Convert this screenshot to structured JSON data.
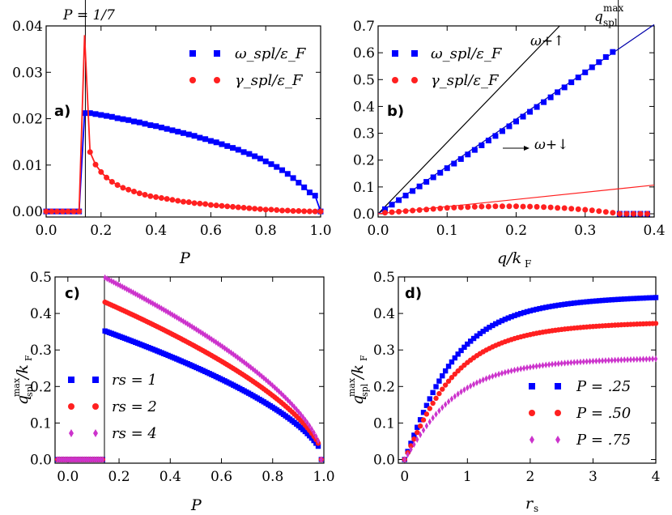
{
  "figure": {
    "title": ""
  },
  "chart_data": [
    {
      "panel": "a)",
      "type": "scatter",
      "xlabel": "P",
      "ylabel": "",
      "xlim": [
        0.0,
        1.0
      ],
      "ylim": [
        0.0,
        0.04
      ],
      "xticks": [
        "0.0",
        "0.2",
        "0.4",
        "0.6",
        "0.8",
        "1.0"
      ],
      "yticks": [
        "0.00",
        "0.01",
        "0.02",
        "0.03",
        "0.04"
      ],
      "vline": {
        "x": 0.142857,
        "label": "P = 1/7"
      },
      "legend_position": "top-right",
      "series": [
        {
          "name": "ω_spl/ε_F",
          "color": "#0000ff",
          "marker": "square",
          "x": [
            0.0,
            0.02,
            0.04,
            0.06,
            0.08,
            0.1,
            0.12,
            0.14,
            0.16,
            0.18,
            0.2,
            0.22,
            0.24,
            0.26,
            0.28,
            0.3,
            0.32,
            0.34,
            0.36,
            0.38,
            0.4,
            0.42,
            0.44,
            0.46,
            0.48,
            0.5,
            0.52,
            0.54,
            0.56,
            0.58,
            0.6,
            0.62,
            0.64,
            0.66,
            0.68,
            0.7,
            0.72,
            0.74,
            0.76,
            0.78,
            0.8,
            0.82,
            0.84,
            0.86,
            0.88,
            0.9,
            0.92,
            0.94,
            0.96,
            0.98,
            1.0
          ],
          "values": [
            0,
            0,
            0,
            0,
            0,
            0,
            0,
            0.0212,
            0.0212,
            0.021,
            0.0208,
            0.0206,
            0.0204,
            0.0201,
            0.0199,
            0.0197,
            0.0194,
            0.0192,
            0.0189,
            0.0186,
            0.0184,
            0.0181,
            0.0178,
            0.0175,
            0.0172,
            0.0169,
            0.0166,
            0.0163,
            0.0159,
            0.0156,
            0.0152,
            0.0149,
            0.0145,
            0.0141,
            0.0137,
            0.0133,
            0.0128,
            0.0124,
            0.0119,
            0.0114,
            0.0108,
            0.0102,
            0.0096,
            0.0089,
            0.0081,
            0.0072,
            0.0062,
            0.0052,
            0.0041,
            0.0034,
            0
          ]
        },
        {
          "name": "γ_spl/ε_F",
          "color": "#ff2020",
          "marker": "circle",
          "x": [
            0.0,
            0.02,
            0.04,
            0.06,
            0.08,
            0.1,
            0.12,
            0.14,
            0.16,
            0.18,
            0.2,
            0.22,
            0.24,
            0.26,
            0.28,
            0.3,
            0.32,
            0.34,
            0.36,
            0.38,
            0.4,
            0.42,
            0.44,
            0.46,
            0.48,
            0.5,
            0.52,
            0.54,
            0.56,
            0.58,
            0.6,
            0.62,
            0.64,
            0.66,
            0.68,
            0.7,
            0.72,
            0.74,
            0.76,
            0.78,
            0.8,
            0.82,
            0.84,
            0.86,
            0.88,
            0.9,
            0.92,
            0.94,
            0.96,
            0.98,
            1.0
          ],
          "values": [
            0,
            0,
            0,
            0,
            0,
            0,
            0,
            0.038,
            0.0128,
            0.0101,
            0.0085,
            0.0073,
            0.0064,
            0.0057,
            0.0051,
            0.0047,
            0.0043,
            0.0039,
            0.0036,
            0.0033,
            0.0031,
            0.0029,
            0.0027,
            0.0025,
            0.0023,
            0.0021,
            0.002,
            0.0018,
            0.0017,
            0.0016,
            0.0014,
            0.0013,
            0.0012,
            0.0011,
            0.001,
            0.0009,
            0.0008,
            0.0007,
            0.0006,
            0.0005,
            0.0004,
            0.0004,
            0.0003,
            0.0002,
            0.0002,
            0.0001,
            0.0001,
            5e-05,
            2e-05,
            0.0,
            0
          ]
        }
      ]
    },
    {
      "panel": "b)",
      "type": "scatter",
      "xlabel": "q/k_F",
      "ylabel": "",
      "xlim": [
        0.0,
        0.4
      ],
      "ylim": [
        0.0,
        0.7
      ],
      "xticks": [
        "0.0",
        "0.1",
        "0.2",
        "0.3",
        "0.4"
      ],
      "yticks": [
        "0.0",
        "0.1",
        "0.2",
        "0.3",
        "0.4",
        "0.5",
        "0.6",
        "0.7"
      ],
      "vline": {
        "x": 0.348,
        "label": "q_spl^max"
      },
      "annotations": [
        {
          "label": "ω_{+↑}",
          "text": "ω+↑"
        },
        {
          "label": "ω_{+↓}",
          "text": "ω+↓"
        }
      ],
      "lines": [
        {
          "name": "ω_{+↑}",
          "color": "#000000",
          "x": [
            0.0,
            0.263
          ],
          "values": [
            0.0,
            0.7
          ]
        },
        {
          "name": "ω_spl fit",
          "color": "#0000aa",
          "x": [
            0.0,
            0.4
          ],
          "values": [
            0.0,
            0.705
          ]
        },
        {
          "name": "γ_spl fit",
          "color": "#ff2020",
          "x": [
            0.0,
            0.4
          ],
          "values": [
            0.0,
            0.107
          ]
        }
      ],
      "legend_position": "top-left",
      "series": [
        {
          "name": "ω_spl/ε_F",
          "color": "#0000ff",
          "marker": "square",
          "x": [
            0.01,
            0.02,
            0.03,
            0.04,
            0.05,
            0.06,
            0.07,
            0.08,
            0.09,
            0.1,
            0.11,
            0.12,
            0.13,
            0.14,
            0.15,
            0.16,
            0.17,
            0.18,
            0.19,
            0.2,
            0.21,
            0.22,
            0.23,
            0.24,
            0.25,
            0.26,
            0.27,
            0.28,
            0.29,
            0.3,
            0.31,
            0.32,
            0.33,
            0.34,
            0.35,
            0.36,
            0.37,
            0.38,
            0.39
          ],
          "values": [
            0.017,
            0.034,
            0.051,
            0.068,
            0.085,
            0.102,
            0.119,
            0.136,
            0.153,
            0.17,
            0.187,
            0.204,
            0.221,
            0.238,
            0.255,
            0.273,
            0.29,
            0.308,
            0.326,
            0.344,
            0.362,
            0.38,
            0.398,
            0.416,
            0.434,
            0.453,
            0.471,
            0.49,
            0.508,
            0.527,
            0.546,
            0.565,
            0.584,
            0.603,
            0,
            0,
            0,
            0,
            0
          ]
        },
        {
          "name": "γ_spl/ε_F",
          "color": "#ff2020",
          "marker": "circle",
          "x": [
            0.01,
            0.02,
            0.03,
            0.04,
            0.05,
            0.06,
            0.07,
            0.08,
            0.09,
            0.1,
            0.11,
            0.12,
            0.13,
            0.14,
            0.15,
            0.16,
            0.17,
            0.18,
            0.19,
            0.2,
            0.21,
            0.22,
            0.23,
            0.24,
            0.25,
            0.26,
            0.27,
            0.28,
            0.29,
            0.3,
            0.31,
            0.32,
            0.33,
            0.34,
            0.35,
            0.36,
            0.37,
            0.38,
            0.39
          ],
          "values": [
            0.004,
            0.006,
            0.008,
            0.01,
            0.012,
            0.014,
            0.016,
            0.018,
            0.02,
            0.022,
            0.023,
            0.024,
            0.025,
            0.026,
            0.027,
            0.027,
            0.028,
            0.028,
            0.028,
            0.028,
            0.027,
            0.027,
            0.026,
            0.025,
            0.024,
            0.022,
            0.021,
            0.019,
            0.017,
            0.015,
            0.013,
            0.01,
            0.007,
            0.004,
            0,
            0,
            0,
            0,
            0
          ]
        }
      ]
    },
    {
      "panel": "c)",
      "type": "scatter",
      "xlabel": "P",
      "ylabel": "q_spl^max/k_F",
      "xlim": [
        -0.05,
        1.0
      ],
      "ylim": [
        0.0,
        0.5
      ],
      "xticks": [
        "0.0",
        "0.2",
        "0.4",
        "0.6",
        "0.8",
        "1.0"
      ],
      "yticks": [
        "0.0",
        "0.1",
        "0.2",
        "0.3",
        "0.4",
        "0.5"
      ],
      "vline": {
        "x": 0.142857,
        "label": ""
      },
      "legend_position": "bottom-left",
      "series": [
        {
          "name": "r_s = 1",
          "legend": "rs = 1",
          "color": "#0000ff",
          "marker": "square",
          "peak": 0.352
        },
        {
          "name": "r_s = 2",
          "legend": "rs = 2",
          "color": "#ff2020",
          "marker": "circle",
          "peak": 0.431
        },
        {
          "name": "r_s = 4",
          "legend": "rs = 4",
          "color": "#cc33cc",
          "marker": "diamond",
          "peak": 0.498
        }
      ]
    },
    {
      "panel": "d)",
      "type": "scatter",
      "xlabel": "r_s",
      "ylabel": "q_spl^max/k_F",
      "xlim": [
        -0.1,
        4.0
      ],
      "ylim": [
        0.0,
        0.5
      ],
      "xticks": [
        "0",
        "1",
        "2",
        "3",
        "4"
      ],
      "yticks": [
        "0.0",
        "0.1",
        "0.2",
        "0.3",
        "0.4",
        "0.5"
      ],
      "legend_position": "bottom-right",
      "series": [
        {
          "name": "P = .25",
          "legend": "P = .25",
          "color": "#0000ff",
          "marker": "square",
          "max": 0.47
        },
        {
          "name": "P = .50",
          "legend": "P = .50",
          "color": "#ff2020",
          "marker": "circle",
          "max": 0.395
        },
        {
          "name": "P = .75",
          "legend": "P = .75",
          "color": "#cc33cc",
          "marker": "diamond",
          "max": 0.292
        }
      ]
    }
  ],
  "texts": {
    "a_top": "P = 1/7",
    "b_top": "q",
    "b_top_sup": "max",
    "b_top_sub": "spl",
    "omega_label": "ω",
    "gamma_label": "γ",
    "spl_sub": "spl",
    "eps": "/ε",
    "F_sub": "F",
    "q_over_kF": "q/k",
    "r_s": "r",
    "s_sub": "s",
    "up": "+↑",
    "down": "+↓",
    "q_ylabel_main": "q",
    "q_ylabel_sup": "max",
    "q_ylabel_sub": "spl",
    "q_ylabel_tail": "/k"
  }
}
